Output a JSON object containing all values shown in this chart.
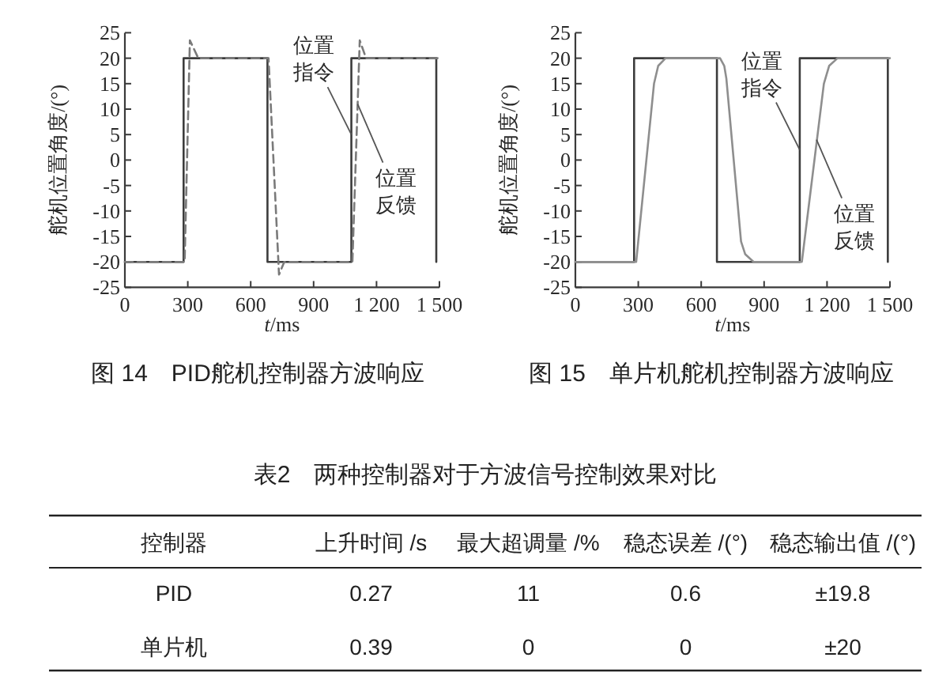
{
  "chart_data": [
    {
      "type": "line",
      "title": "图 14　PID舵机控制器方波响应",
      "xlabel": "*t*/ms",
      "ylabel": "舵机位置角度/(°)",
      "xlim": [
        0,
        1500
      ],
      "xticks": [
        0,
        300,
        600,
        900,
        1200,
        1500
      ],
      "ylim": [
        -25,
        25
      ],
      "yticks": [
        -25,
        -20,
        -15,
        -10,
        -5,
        0,
        5,
        10,
        15,
        20,
        25
      ],
      "series": [
        {
          "color": "#3c3c3c",
          "x": [
            0,
            280,
            280,
            680,
            680,
            1080,
            1080,
            1485,
            1485
          ],
          "values": [
            -20,
            -20,
            20,
            20,
            -20,
            -20,
            20,
            20,
            -20
          ]
        },
        {
          "color": "#7a7a7a",
          "line_style": "dashed",
          "x": [
            0,
            285,
            310,
            350,
            685,
            735,
            760,
            1085,
            1120,
            1150,
            1500
          ],
          "values": [
            -20,
            -20,
            23.5,
            20,
            20,
            -22.5,
            -20,
            -20,
            23.5,
            20,
            20
          ]
        }
      ],
      "annotations": [
        {
          "text": "位置指令",
          "x": 1080,
          "y": 5
        },
        {
          "text": "位置反馈",
          "x": 1110,
          "y": 11
        }
      ]
    },
    {
      "type": "line",
      "title": "图 15　单片机舵机控制器方波响应",
      "xlabel": "*t*/ms",
      "ylabel": "舵机位置角度/(°)",
      "xlim": [
        0,
        1500
      ],
      "xticks": [
        0,
        300,
        600,
        900,
        1200,
        1500
      ],
      "ylim": [
        -25,
        25
      ],
      "yticks": [
        -25,
        -20,
        -15,
        -10,
        -5,
        0,
        5,
        10,
        15,
        20,
        25
      ],
      "series": [
        {
          "color": "#3c3c3c",
          "x": [
            0,
            280,
            280,
            675,
            675,
            1070,
            1070,
            1490,
            1490
          ],
          "values": [
            -20,
            -20,
            20,
            20,
            -20,
            -20,
            20,
            20,
            -20
          ]
        },
        {
          "color": "#8e8e8e",
          "x": [
            0,
            290,
            375,
            395,
            430,
            690,
            710,
            720,
            790,
            810,
            850,
            1080,
            1185,
            1210,
            1250,
            1500
          ],
          "values": [
            -20,
            -20,
            15,
            18.5,
            20,
            20,
            18.5,
            16,
            -16,
            -18.5,
            -20,
            -20,
            15,
            18.5,
            20,
            20
          ]
        }
      ],
      "annotations": [
        {
          "text": "位置指令",
          "x": 1070,
          "y": 2
        },
        {
          "text": "位置反馈",
          "x": 1150,
          "y": 4
        }
      ]
    },
    {
      "type": "other",
      "title": "表2　两种控制器对于方波信号控制效果对比",
      "legend_title": "控制器",
      "categories": [
        "上升时间 /s",
        "最大超调量 /%",
        "稳态误差 /(°)",
        "稳态输出值 /(°)"
      ],
      "series": [
        {
          "name": "PID",
          "values": [
            0.27,
            11,
            0.6,
            19.8
          ],
          "value_labels": [
            "0.27",
            "11",
            "0.6",
            "±19.8"
          ]
        },
        {
          "name": "单片机",
          "values": [
            0.39,
            0,
            0,
            20
          ],
          "value_labels": [
            "0.39",
            "0",
            "0",
            "±20"
          ]
        }
      ]
    }
  ]
}
